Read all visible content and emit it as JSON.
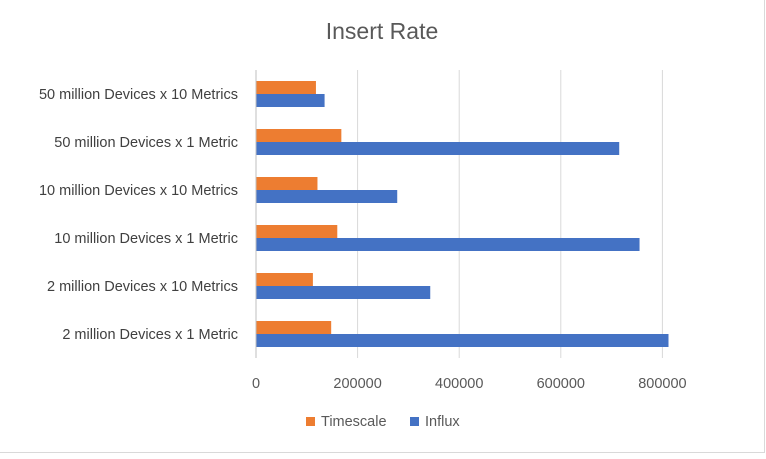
{
  "chart_data": {
    "type": "bar",
    "orientation": "horizontal",
    "title": "Insert Rate",
    "categories": [
      "50 million Devices x 10 Metrics",
      "50 million Devices x 1 Metric",
      "10 million Devices x 10 Metrics",
      "10 million Devices x 1 Metric",
      "2 million Devices x 10 Metrics",
      "2 million Devices x 1 Metric"
    ],
    "series": [
      {
        "name": "Timescale",
        "color": "#ED7D31",
        "values": [
          118000,
          168000,
          121000,
          160000,
          112000,
          148000
        ]
      },
      {
        "name": "Influx",
        "color": "#4472C4",
        "values": [
          135000,
          715000,
          278000,
          755000,
          343000,
          812000
        ]
      }
    ],
    "xlim": [
      0,
      900000
    ],
    "xticks": [
      0,
      200000,
      400000,
      600000,
      800000
    ],
    "xtick_labels": [
      "0",
      "200000",
      "400000",
      "600000",
      "800000"
    ],
    "grid": true,
    "legend_position": "bottom"
  }
}
